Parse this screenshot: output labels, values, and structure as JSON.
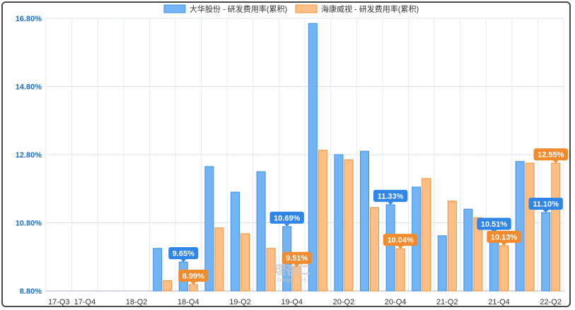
{
  "chart_data": {
    "type": "bar",
    "title": "",
    "xlabel": "",
    "ylabel": "",
    "x_tick_labels": [
      "17-Q3",
      "17-Q4",
      "18-Q2",
      "18-Q4",
      "19-Q2",
      "19-Q4",
      "20-Q2",
      "20-Q4",
      "21-Q2",
      "21-Q4",
      "22-Q2"
    ],
    "categories": [
      "17-Q3",
      "17-Q4",
      "18-Q1",
      "18-Q2",
      "18-Q3",
      "18-Q4",
      "19-Q1",
      "19-Q2",
      "19-Q3",
      "19-Q4",
      "20-Q1",
      "20-Q2",
      "20-Q3",
      "20-Q4",
      "21-Q1",
      "21-Q2",
      "21-Q3",
      "21-Q4",
      "22-Q1",
      "22-Q2"
    ],
    "series": [
      {
        "name": "大华股份 - 研发费用率(累积)",
        "color": "#73b4f5",
        "stroke": "#3d8fe8",
        "values": [
          null,
          null,
          null,
          null,
          10.05,
          9.65,
          12.45,
          11.7,
          12.3,
          10.69,
          16.65,
          12.8,
          12.9,
          11.33,
          11.85,
          10.42,
          11.2,
          10.51,
          12.6,
          11.1
        ]
      },
      {
        "name": "海康威视 - 研发费用率(累积)",
        "color": "#fdbf85",
        "stroke": "#f5913a",
        "values": [
          null,
          null,
          null,
          null,
          9.1,
          8.99,
          10.65,
          10.48,
          10.05,
          9.51,
          12.93,
          12.65,
          11.25,
          10.04,
          12.1,
          11.44,
          10.95,
          10.13,
          12.55,
          12.55
        ]
      }
    ],
    "data_labels": [
      {
        "series": 0,
        "index": 5,
        "text": "9.65%"
      },
      {
        "series": 1,
        "index": 5,
        "text": "8.99%"
      },
      {
        "series": 0,
        "index": 9,
        "text": "10.69%"
      },
      {
        "series": 1,
        "index": 9,
        "text": "9.51%"
      },
      {
        "series": 0,
        "index": 13,
        "text": "11.33%"
      },
      {
        "series": 1,
        "index": 13,
        "text": "10.04%"
      },
      {
        "series": 0,
        "index": 17,
        "text": "10.51%"
      },
      {
        "series": 1,
        "index": 17,
        "text": "10.13%"
      },
      {
        "series": 0,
        "index": 19,
        "text": "11.10%"
      },
      {
        "series": 1,
        "index": 19,
        "text": "12.55%"
      }
    ],
    "y_ticks": [
      "16.80%",
      "14.80%",
      "12.80%",
      "10.80%",
      "8.80%"
    ],
    "ylim": [
      8.8,
      16.8
    ],
    "grid": true,
    "legend_position": "top-center"
  },
  "watermark": {
    "text": "理杏仁",
    "subtext": "lixinger.com"
  }
}
